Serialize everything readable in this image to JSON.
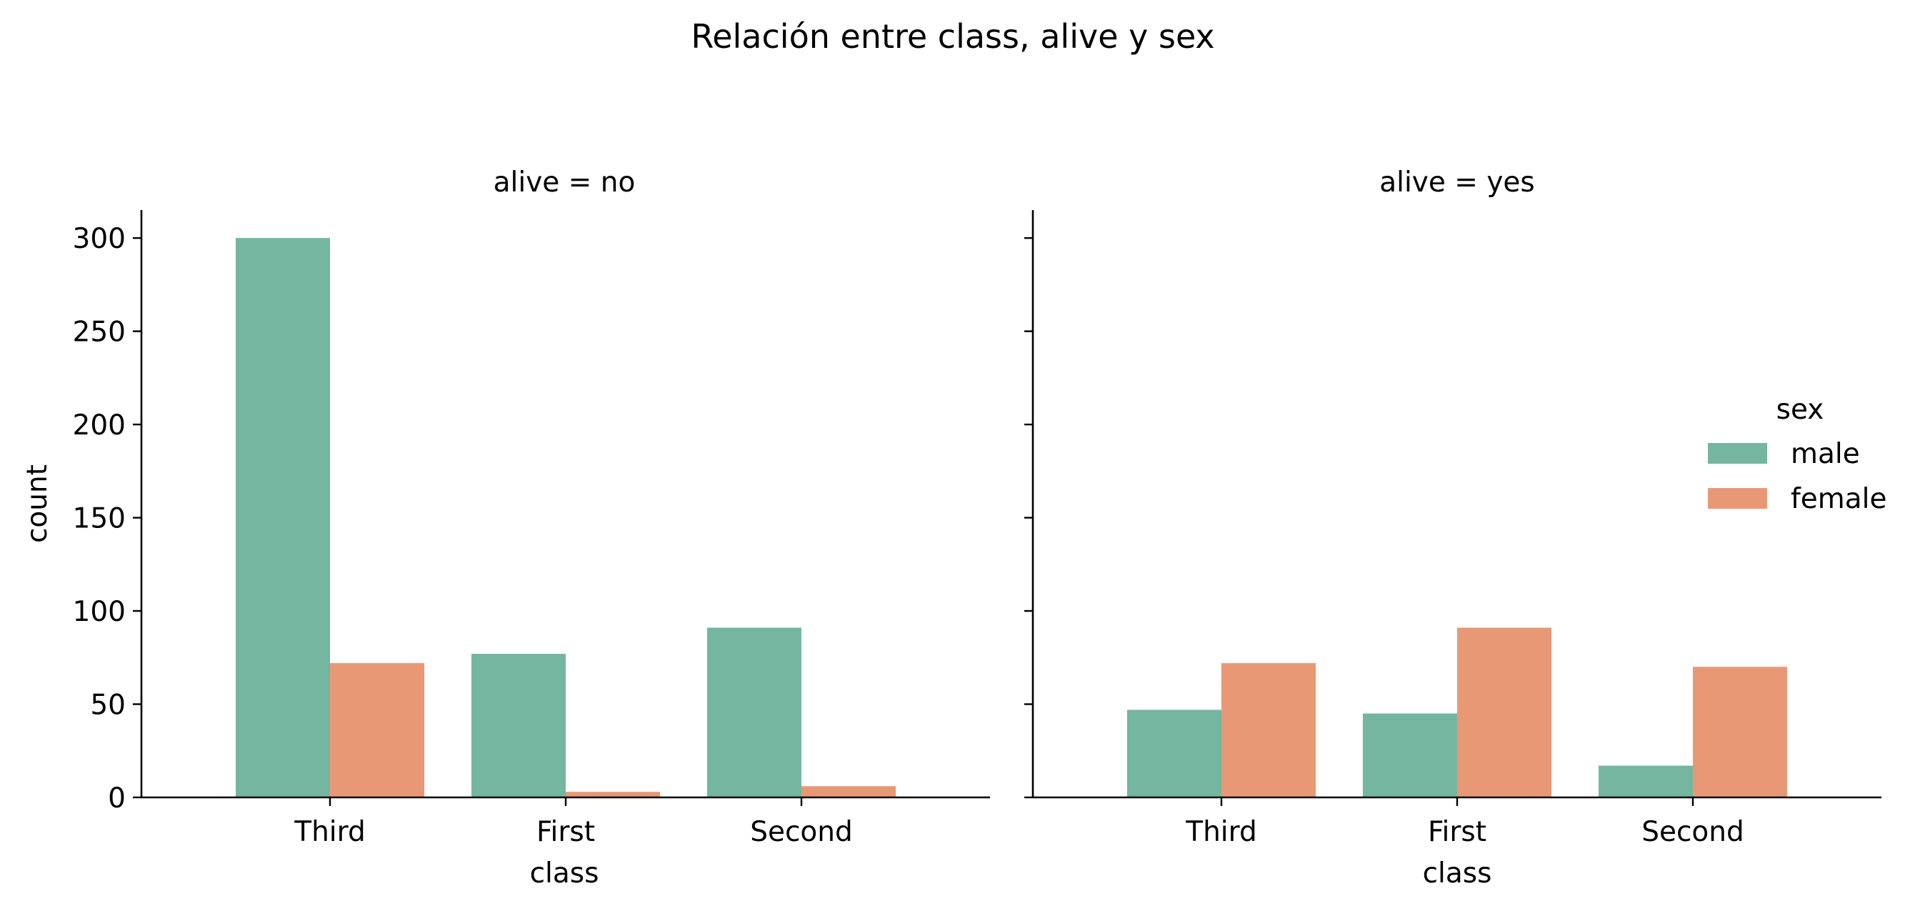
{
  "chart_data": {
    "type": "bar",
    "title": "Relación entre class, alive y sex",
    "xlabel": "class",
    "ylabel": "count",
    "categories": [
      "Third",
      "First",
      "Second"
    ],
    "ylim": [
      0,
      315
    ],
    "yticks": [
      "0",
      "50",
      "100",
      "150",
      "200",
      "250",
      "300"
    ],
    "grid": false,
    "legend": {
      "title": "sex",
      "placement": "center-right",
      "entries": [
        "male",
        "female"
      ]
    },
    "colors": {
      "male": "#74b6a0",
      "female": "#e99875"
    },
    "facets": [
      {
        "title": "alive = no",
        "series": [
          {
            "name": "male",
            "values": [
              300,
              77,
              91
            ]
          },
          {
            "name": "female",
            "values": [
              72,
              3,
              6
            ]
          }
        ]
      },
      {
        "title": "alive = yes",
        "series": [
          {
            "name": "male",
            "values": [
              47,
              45,
              17
            ]
          },
          {
            "name": "female",
            "values": [
              72,
              91,
              70
            ]
          }
        ]
      }
    ]
  }
}
